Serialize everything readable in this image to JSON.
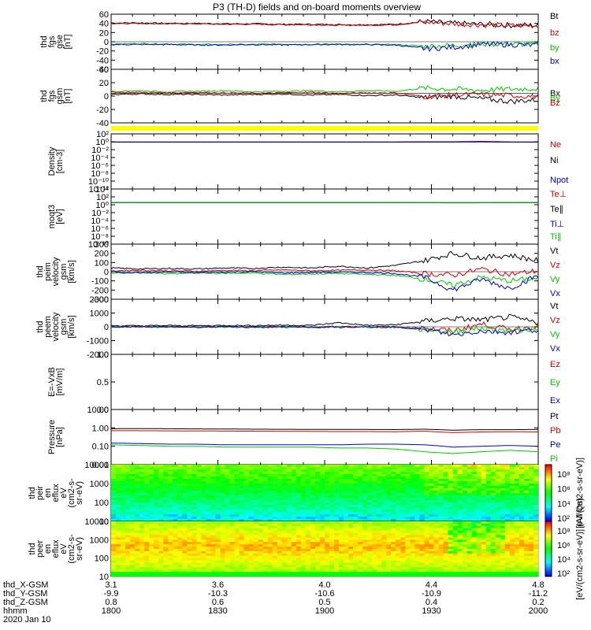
{
  "header": {
    "title": "P3 (TH-D) fields and on-board moments overview"
  },
  "colors": {
    "black": "#000000",
    "red": "#d40000",
    "green": "#00c800",
    "blue": "#0000d4",
    "yellow": "#ffff00"
  },
  "chart_data": [
    {
      "id": "fgs-gse",
      "type": "line",
      "ylabel_lines": [
        "thd",
        "fgs",
        "gse",
        "[nT]"
      ],
      "yticks": [
        "60",
        "40",
        "20",
        "0",
        "-20",
        "-40",
        "-60"
      ],
      "ylim": [
        -60,
        60
      ],
      "series": [
        {
          "name": "Bt",
          "color": "black",
          "values": [
            41,
            41,
            40,
            40,
            39,
            39,
            38,
            38,
            37,
            37,
            38,
            44,
            40,
            38,
            36,
            36
          ]
        },
        {
          "name": "bz",
          "color": "red",
          "values": [
            40,
            40,
            39,
            39,
            38,
            38,
            37,
            37,
            36,
            36,
            37,
            43,
            39,
            37,
            35,
            35
          ]
        },
        {
          "name": "by",
          "color": "green",
          "values": [
            -5,
            -4,
            -5,
            -6,
            -6,
            -6,
            -5,
            -6,
            -5,
            -7,
            -6,
            -10,
            -8,
            -5,
            -5,
            -6
          ]
        },
        {
          "name": "bx",
          "color": "blue",
          "values": [
            -6,
            -6,
            -6,
            -7,
            -7,
            -6,
            -7,
            -6,
            -6,
            -6,
            -7,
            -15,
            -12,
            -6,
            -6,
            -8
          ]
        }
      ]
    },
    {
      "id": "fgs-gsm",
      "type": "line",
      "ylabel_lines": [
        "thd",
        "fgs",
        "gsm",
        "[nT]"
      ],
      "yticks": [
        "40",
        "20",
        "0",
        "-20",
        "-40"
      ],
      "ylim": [
        -55,
        45
      ],
      "series": [
        {
          "name": "Bx",
          "color": "black",
          "values": [
            -2,
            -1,
            -2,
            -2,
            -3,
            -2,
            -1,
            -3,
            -2,
            -4,
            -3,
            -8,
            -5,
            -10,
            -15,
            -12
          ]
        },
        {
          "name": "By",
          "color": "green",
          "values": [
            4,
            5,
            3,
            4,
            5,
            3,
            4,
            5,
            3,
            5,
            4,
            10,
            8,
            6,
            8,
            9
          ]
        },
        {
          "name": "Bz",
          "color": "red",
          "values": [
            2,
            2,
            1,
            2,
            1,
            0,
            1,
            2,
            0,
            1,
            1,
            -6,
            -3,
            -2,
            -4,
            -6
          ]
        }
      ]
    },
    {
      "id": "density",
      "type": "line",
      "log": true,
      "ylabel_lines": [
        "Density",
        "[cm-3]"
      ],
      "yticks": [
        "10²",
        "10⁰",
        "10⁻²",
        "10⁻⁴",
        "10⁻⁶",
        "10⁻⁸",
        "10⁻¹⁰",
        "10⁻¹²"
      ],
      "ylim": [
        -12,
        2
      ],
      "series": [
        {
          "name": "Ne",
          "color": "red",
          "values": [
            0.9,
            0.9,
            0.9,
            0.9,
            0.9,
            0.9,
            0.9,
            0.9,
            0.9,
            0.9,
            0.9,
            1.0,
            1.0,
            1.3,
            0.9,
            0.9
          ]
        },
        {
          "name": "Ni",
          "color": "black",
          "values": [
            0.85,
            0.85,
            0.85,
            0.85,
            0.85,
            0.85,
            0.85,
            0.85,
            0.85,
            0.85,
            0.85,
            0.9,
            0.9,
            1.0,
            0.85,
            0.85
          ]
        },
        {
          "name": "Npot",
          "color": "blue",
          "values": [
            0.8,
            0.8,
            0.8,
            0.8,
            0.8,
            0.8,
            0.8,
            0.8,
            0.8,
            0.8,
            0.8,
            0.85,
            0.85,
            0.9,
            0.8,
            0.8
          ]
        }
      ]
    },
    {
      "id": "temp",
      "type": "line",
      "log": true,
      "ylabel_lines": [
        "moqt3",
        "[eV]"
      ],
      "yticks": [
        "10⁴",
        "10²",
        "10⁰",
        "10⁻²",
        "10⁻⁴",
        "10⁻⁶",
        "10⁻⁸",
        "10⁻¹⁰"
      ],
      "ylim": [
        -10,
        4
      ],
      "series": [
        {
          "name": "Te⊥",
          "color": "red",
          "values": [
            3.3,
            3.3,
            3.3,
            3.3,
            3.3,
            3.3,
            3.3,
            3.3,
            3.3,
            3.3,
            3.3,
            3.2,
            3.0,
            3.1,
            3.2,
            3.3
          ]
        },
        {
          "name": "Te∥",
          "color": "black",
          "values": [
            3.4,
            3.4,
            3.4,
            3.4,
            3.4,
            3.4,
            3.4,
            3.4,
            3.4,
            3.4,
            3.4,
            3.3,
            3.1,
            3.2,
            3.3,
            3.4
          ]
        },
        {
          "name": "Ti⊥",
          "color": "blue",
          "values": [
            3.5,
            3.5,
            3.5,
            3.5,
            3.5,
            3.5,
            3.5,
            3.5,
            3.5,
            3.5,
            3.5,
            3.6,
            3.6,
            3.6,
            3.7,
            3.6
          ]
        },
        {
          "name": "Ti∥",
          "color": "green",
          "values": [
            3.45,
            3.45,
            3.45,
            3.45,
            3.45,
            3.45,
            3.45,
            3.45,
            3.45,
            3.45,
            3.45,
            3.5,
            3.5,
            3.5,
            3.6,
            3.5
          ]
        }
      ]
    },
    {
      "id": "peim",
      "type": "line",
      "ylabel_lines": [
        "thd",
        "peim",
        "velocity",
        "gsm",
        "[km/s]"
      ],
      "yticks": [
        "300",
        "200",
        "100",
        "0",
        "-100",
        "-200",
        "-300"
      ],
      "ylim": [
        -300,
        300
      ],
      "series": [
        {
          "name": "Vt",
          "color": "black",
          "values": [
            40,
            30,
            35,
            30,
            40,
            35,
            50,
            40,
            60,
            40,
            70,
            120,
            200,
            150,
            180,
            120
          ]
        },
        {
          "name": "Vz",
          "color": "red",
          "values": [
            10,
            15,
            10,
            5,
            15,
            10,
            20,
            10,
            15,
            20,
            10,
            -20,
            -40,
            30,
            -30,
            10
          ]
        },
        {
          "name": "Vy",
          "color": "green",
          "values": [
            -20,
            -10,
            -25,
            -15,
            -20,
            -15,
            -30,
            -25,
            -20,
            -30,
            -40,
            -80,
            -150,
            -60,
            -100,
            -70
          ]
        },
        {
          "name": "Vx",
          "color": "blue",
          "values": [
            -5,
            -10,
            -5,
            -10,
            -5,
            0,
            -15,
            -10,
            -5,
            -10,
            -20,
            -60,
            -200,
            -80,
            -180,
            -40
          ]
        }
      ]
    },
    {
      "id": "peem",
      "type": "line",
      "ylabel_lines": [
        "thd",
        "peem",
        "velocity",
        "gsm",
        "[km/s]"
      ],
      "yticks": [
        "2000",
        "1000",
        "0",
        "-1000",
        "-2000"
      ],
      "ylim": [
        -2000,
        2000
      ],
      "series": [
        {
          "name": "Vt",
          "color": "black",
          "values": [
            80,
            70,
            90,
            80,
            100,
            90,
            120,
            100,
            300,
            100,
            150,
            400,
            600,
            500,
            700,
            300
          ]
        },
        {
          "name": "Vz",
          "color": "red",
          "values": [
            10,
            0,
            20,
            -10,
            20,
            0,
            30,
            -20,
            40,
            10,
            0,
            -100,
            -300,
            200,
            -200,
            50
          ]
        },
        {
          "name": "Vy",
          "color": "green",
          "values": [
            -20,
            -10,
            -30,
            -20,
            -10,
            -40,
            -30,
            -60,
            -20,
            -30,
            -50,
            -200,
            -400,
            -100,
            -300,
            -100
          ]
        },
        {
          "name": "Vx",
          "color": "blue",
          "values": [
            -10,
            0,
            -10,
            -20,
            0,
            -10,
            -20,
            -10,
            -30,
            -10,
            -30,
            -150,
            -600,
            -300,
            -400,
            -200
          ]
        }
      ]
    },
    {
      "id": "efield",
      "type": "line",
      "ylabel_lines": [
        "E=-VxB",
        "[mV/m]"
      ],
      "yticks": [
        "1.0",
        "0.5",
        "0.0"
      ],
      "ylim": [
        0,
        1
      ],
      "series": [
        {
          "name": "Ez",
          "color": "red",
          "values": []
        },
        {
          "name": "Ey",
          "color": "green",
          "values": []
        },
        {
          "name": "Ex",
          "color": "blue",
          "values": []
        }
      ]
    },
    {
      "id": "pressure",
      "type": "line",
      "log": true,
      "ylabel_lines": [
        "Pressure",
        "[nPa]"
      ],
      "yticks": [
        "10.00",
        "1.00",
        "0.10",
        "0.01"
      ],
      "ylim": [
        -2,
        1
      ],
      "series": [
        {
          "name": "Pt",
          "color": "black",
          "values": [
            0.9,
            0.92,
            0.9,
            0.88,
            0.87,
            0.85,
            0.84,
            0.83,
            0.82,
            0.82,
            0.81,
            0.85,
            0.75,
            0.8,
            0.8,
            0.82
          ]
        },
        {
          "name": "Pb",
          "color": "red",
          "values": [
            0.7,
            0.7,
            0.69,
            0.68,
            0.67,
            0.66,
            0.65,
            0.64,
            0.63,
            0.63,
            0.62,
            0.66,
            0.55,
            0.6,
            0.62,
            0.6
          ]
        },
        {
          "name": "Pe",
          "color": "blue",
          "values": [
            0.15,
            0.14,
            0.13,
            0.13,
            0.12,
            0.12,
            0.12,
            0.12,
            0.12,
            0.13,
            0.13,
            0.12,
            0.09,
            0.1,
            0.11,
            0.1
          ]
        },
        {
          "name": "Pi",
          "color": "green",
          "values": [
            0.12,
            0.11,
            0.1,
            0.1,
            0.09,
            0.09,
            0.09,
            0.09,
            0.08,
            0.08,
            0.07,
            0.05,
            0.04,
            0.05,
            0.06,
            0.05
          ]
        }
      ]
    },
    {
      "id": "peir",
      "type": "heatmap",
      "ylabel_lines": [
        "thd",
        "peir",
        "en",
        "eflux",
        "eV",
        "(cm2-s-",
        "sr-eV)"
      ],
      "yticks": [
        "10000",
        "1000",
        "100",
        "10"
      ],
      "ylim": [
        1,
        4.3
      ],
      "colorbar_ticks": [
        "10⁸",
        "10⁶",
        "10⁴",
        "10²"
      ],
      "colorbar_label": "[eV/(cm2-s-sr-eV)]"
    },
    {
      "id": "peer",
      "type": "heatmap",
      "ylabel_lines": [
        "thd",
        "peer",
        "en",
        "eflux",
        "eV",
        "(cm2-s-",
        "sr-eV)"
      ],
      "yticks": [
        "10000",
        "1000",
        "100",
        "10"
      ],
      "ylim": [
        0.7,
        4.3
      ],
      "colorbar_ticks": [
        "10⁸",
        "10⁶",
        "10⁴",
        "10²"
      ],
      "colorbar_label": "[eV/(cm2-s-sr-eV)] (All Qs)"
    }
  ],
  "xaxis": {
    "columns": [
      {
        "x": "3.1",
        "y": "-9.9",
        "z": "0.8",
        "hhmm": "1800"
      },
      {
        "x": "3.6",
        "y": "-10.3",
        "z": "0.6",
        "hhmm": "1830"
      },
      {
        "x": "4.0",
        "y": "-10.6",
        "z": "0.5",
        "hhmm": "1900"
      },
      {
        "x": "4.4",
        "y": "-10.9",
        "z": "0.4",
        "hhmm": "1930"
      },
      {
        "x": "4.8",
        "y": "-11.2",
        "z": "0.2",
        "hhmm": "2000"
      }
    ],
    "row_labels": [
      "thd_X-GSM",
      "thd_Y-GSM",
      "thd_Z-GSM",
      "hhmm"
    ],
    "date": "2020 Jan 10"
  }
}
